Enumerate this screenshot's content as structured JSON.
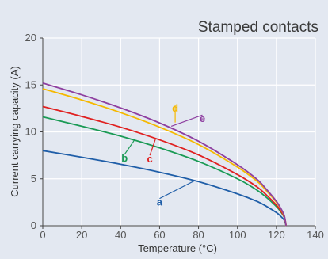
{
  "chart_data": {
    "type": "line",
    "title": "Stamped contacts",
    "xlabel": "Temperature (°C)",
    "ylabel": "Current carrying capacity (A)",
    "xlim": [
      0,
      140
    ],
    "ylim": [
      0,
      20
    ],
    "xticks": [
      0,
      20,
      40,
      60,
      80,
      100,
      120,
      140
    ],
    "yticks": [
      0,
      5,
      10,
      15,
      20
    ],
    "grid": true,
    "series": [
      {
        "name": "a",
        "color": "#1f5ea8",
        "x": [
          0,
          20,
          40,
          60,
          80,
          100,
          110,
          115,
          120,
          122,
          124,
          125
        ],
        "y": [
          8.0,
          7.3,
          6.55,
          5.7,
          4.7,
          3.4,
          2.6,
          2.05,
          1.4,
          1.05,
          0.6,
          0
        ]
      },
      {
        "name": "b",
        "color": "#1a9a55",
        "x": [
          0,
          20,
          40,
          60,
          80,
          100,
          110,
          115,
          120,
          122,
          124,
          125
        ],
        "y": [
          11.6,
          10.6,
          9.55,
          8.3,
          6.85,
          5.0,
          3.8,
          3.0,
          2.05,
          1.55,
          0.9,
          0
        ]
      },
      {
        "name": "c",
        "color": "#e02020",
        "x": [
          0,
          20,
          40,
          60,
          80,
          100,
          110,
          115,
          120,
          122,
          124,
          125
        ],
        "y": [
          12.7,
          11.65,
          10.5,
          9.15,
          7.55,
          5.45,
          4.15,
          3.25,
          2.2,
          1.65,
          0.95,
          0
        ]
      },
      {
        "name": "d",
        "color": "#f5b800",
        "x": [
          0,
          20,
          40,
          60,
          80,
          100,
          110,
          115,
          120,
          122,
          124,
          125
        ],
        "y": [
          14.6,
          13.4,
          12.05,
          10.5,
          8.65,
          6.25,
          4.75,
          3.7,
          2.5,
          1.9,
          1.05,
          0
        ]
      },
      {
        "name": "e",
        "color": "#8e3fa0",
        "x": [
          0,
          20,
          40,
          60,
          80,
          100,
          110,
          115,
          120,
          122,
          124,
          125
        ],
        "y": [
          15.2,
          13.95,
          12.55,
          10.95,
          9.0,
          6.5,
          4.95,
          3.85,
          2.6,
          1.95,
          1.1,
          0
        ]
      }
    ],
    "annotations": [
      {
        "series": "a",
        "point": [
          78,
          4.8
        ],
        "label_at": [
          60,
          2.9
        ]
      },
      {
        "series": "b",
        "point": [
          47,
          9.1
        ],
        "label_at": [
          42,
          7.6
        ]
      },
      {
        "series": "c",
        "point": [
          58,
          9.3
        ],
        "label_at": [
          55,
          7.5
        ]
      },
      {
        "series": "d",
        "point": [
          68,
          11.0
        ],
        "label_at": [
          68,
          12.9
        ]
      },
      {
        "series": "e",
        "point": [
          66,
          10.6
        ],
        "label_at": [
          82,
          11.8
        ]
      }
    ]
  }
}
